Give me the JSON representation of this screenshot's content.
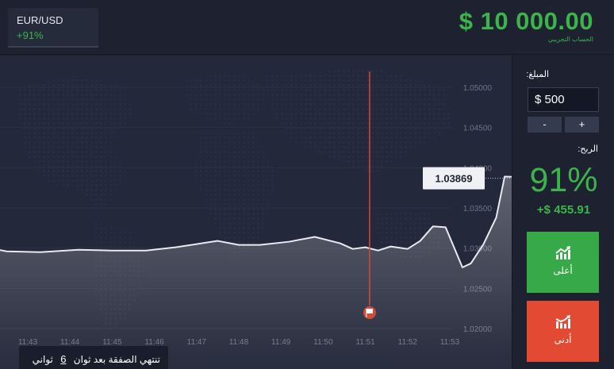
{
  "header": {
    "asset": {
      "name": "EUR/USD",
      "payout": "+91%"
    },
    "balance": "$ 10 000.00",
    "balance_label": "الحساب التجريبي"
  },
  "chart_data": {
    "type": "line",
    "x_ticks": [
      "11:43",
      "11:44",
      "11:45",
      "11:46",
      "11:47",
      "11:48",
      "11:49",
      "11:50",
      "11:51",
      "11:52",
      "11:53"
    ],
    "y_ticks": [
      "1.05000",
      "1.04500",
      "1.04000",
      "1.03500",
      "1.03000",
      "1.02500",
      "1.02000"
    ],
    "ylim": [
      1.019,
      1.0545
    ],
    "x_range_minutes": [
      11.42,
      11.53
    ],
    "points": [
      [
        11.42,
        1.0301
      ],
      [
        11.425,
        1.0296
      ],
      [
        11.433,
        1.0295
      ],
      [
        11.442,
        1.0298
      ],
      [
        11.45,
        1.0297
      ],
      [
        11.458,
        1.0297
      ],
      [
        11.465,
        1.0301
      ],
      [
        11.47,
        1.0305
      ],
      [
        11.475,
        1.0309
      ],
      [
        11.48,
        1.0304
      ],
      [
        11.485,
        1.0304
      ],
      [
        11.492,
        1.0308
      ],
      [
        11.498,
        1.0314
      ],
      [
        11.504,
        1.0306
      ],
      [
        11.507,
        1.0299
      ],
      [
        11.51,
        1.0301
      ],
      [
        11.513,
        1.0297
      ],
      [
        11.516,
        1.0302
      ],
      [
        11.52,
        1.0299
      ],
      [
        11.523,
        1.0309
      ],
      [
        11.526,
        1.0327
      ],
      [
        11.529,
        1.0326
      ],
      [
        11.533,
        1.0276
      ],
      [
        11.535,
        1.0281
      ],
      [
        11.538,
        1.0305
      ],
      [
        11.541,
        1.0338
      ],
      [
        11.543,
        1.0389
      ],
      [
        11.549,
        1.0388
      ],
      [
        11.555,
        1.03869
      ]
    ],
    "current_price": "1.03869",
    "expiry_x": 11.511
  },
  "countdown": {
    "text_before": "تنتهي الصفقة بعد ثوان",
    "seconds": "6",
    "text_after": "ثواني"
  },
  "panel": {
    "amount_label": "المبلغ:",
    "amount_value": "$ 500",
    "minus": "-",
    "plus": "+",
    "profit_label": "الربح:",
    "profit_pct": "91%",
    "profit_amount": "+$ 455.91",
    "higher": "أعلى",
    "lower": "أدنى"
  },
  "colors": {
    "green": "#3bb54a",
    "red": "#e24a33",
    "line": "#e8eaef",
    "expiry": "#d24b3a"
  },
  "icons": [
    "chart-up-icon",
    "chart-down-icon",
    "finish-flag-icon"
  ]
}
